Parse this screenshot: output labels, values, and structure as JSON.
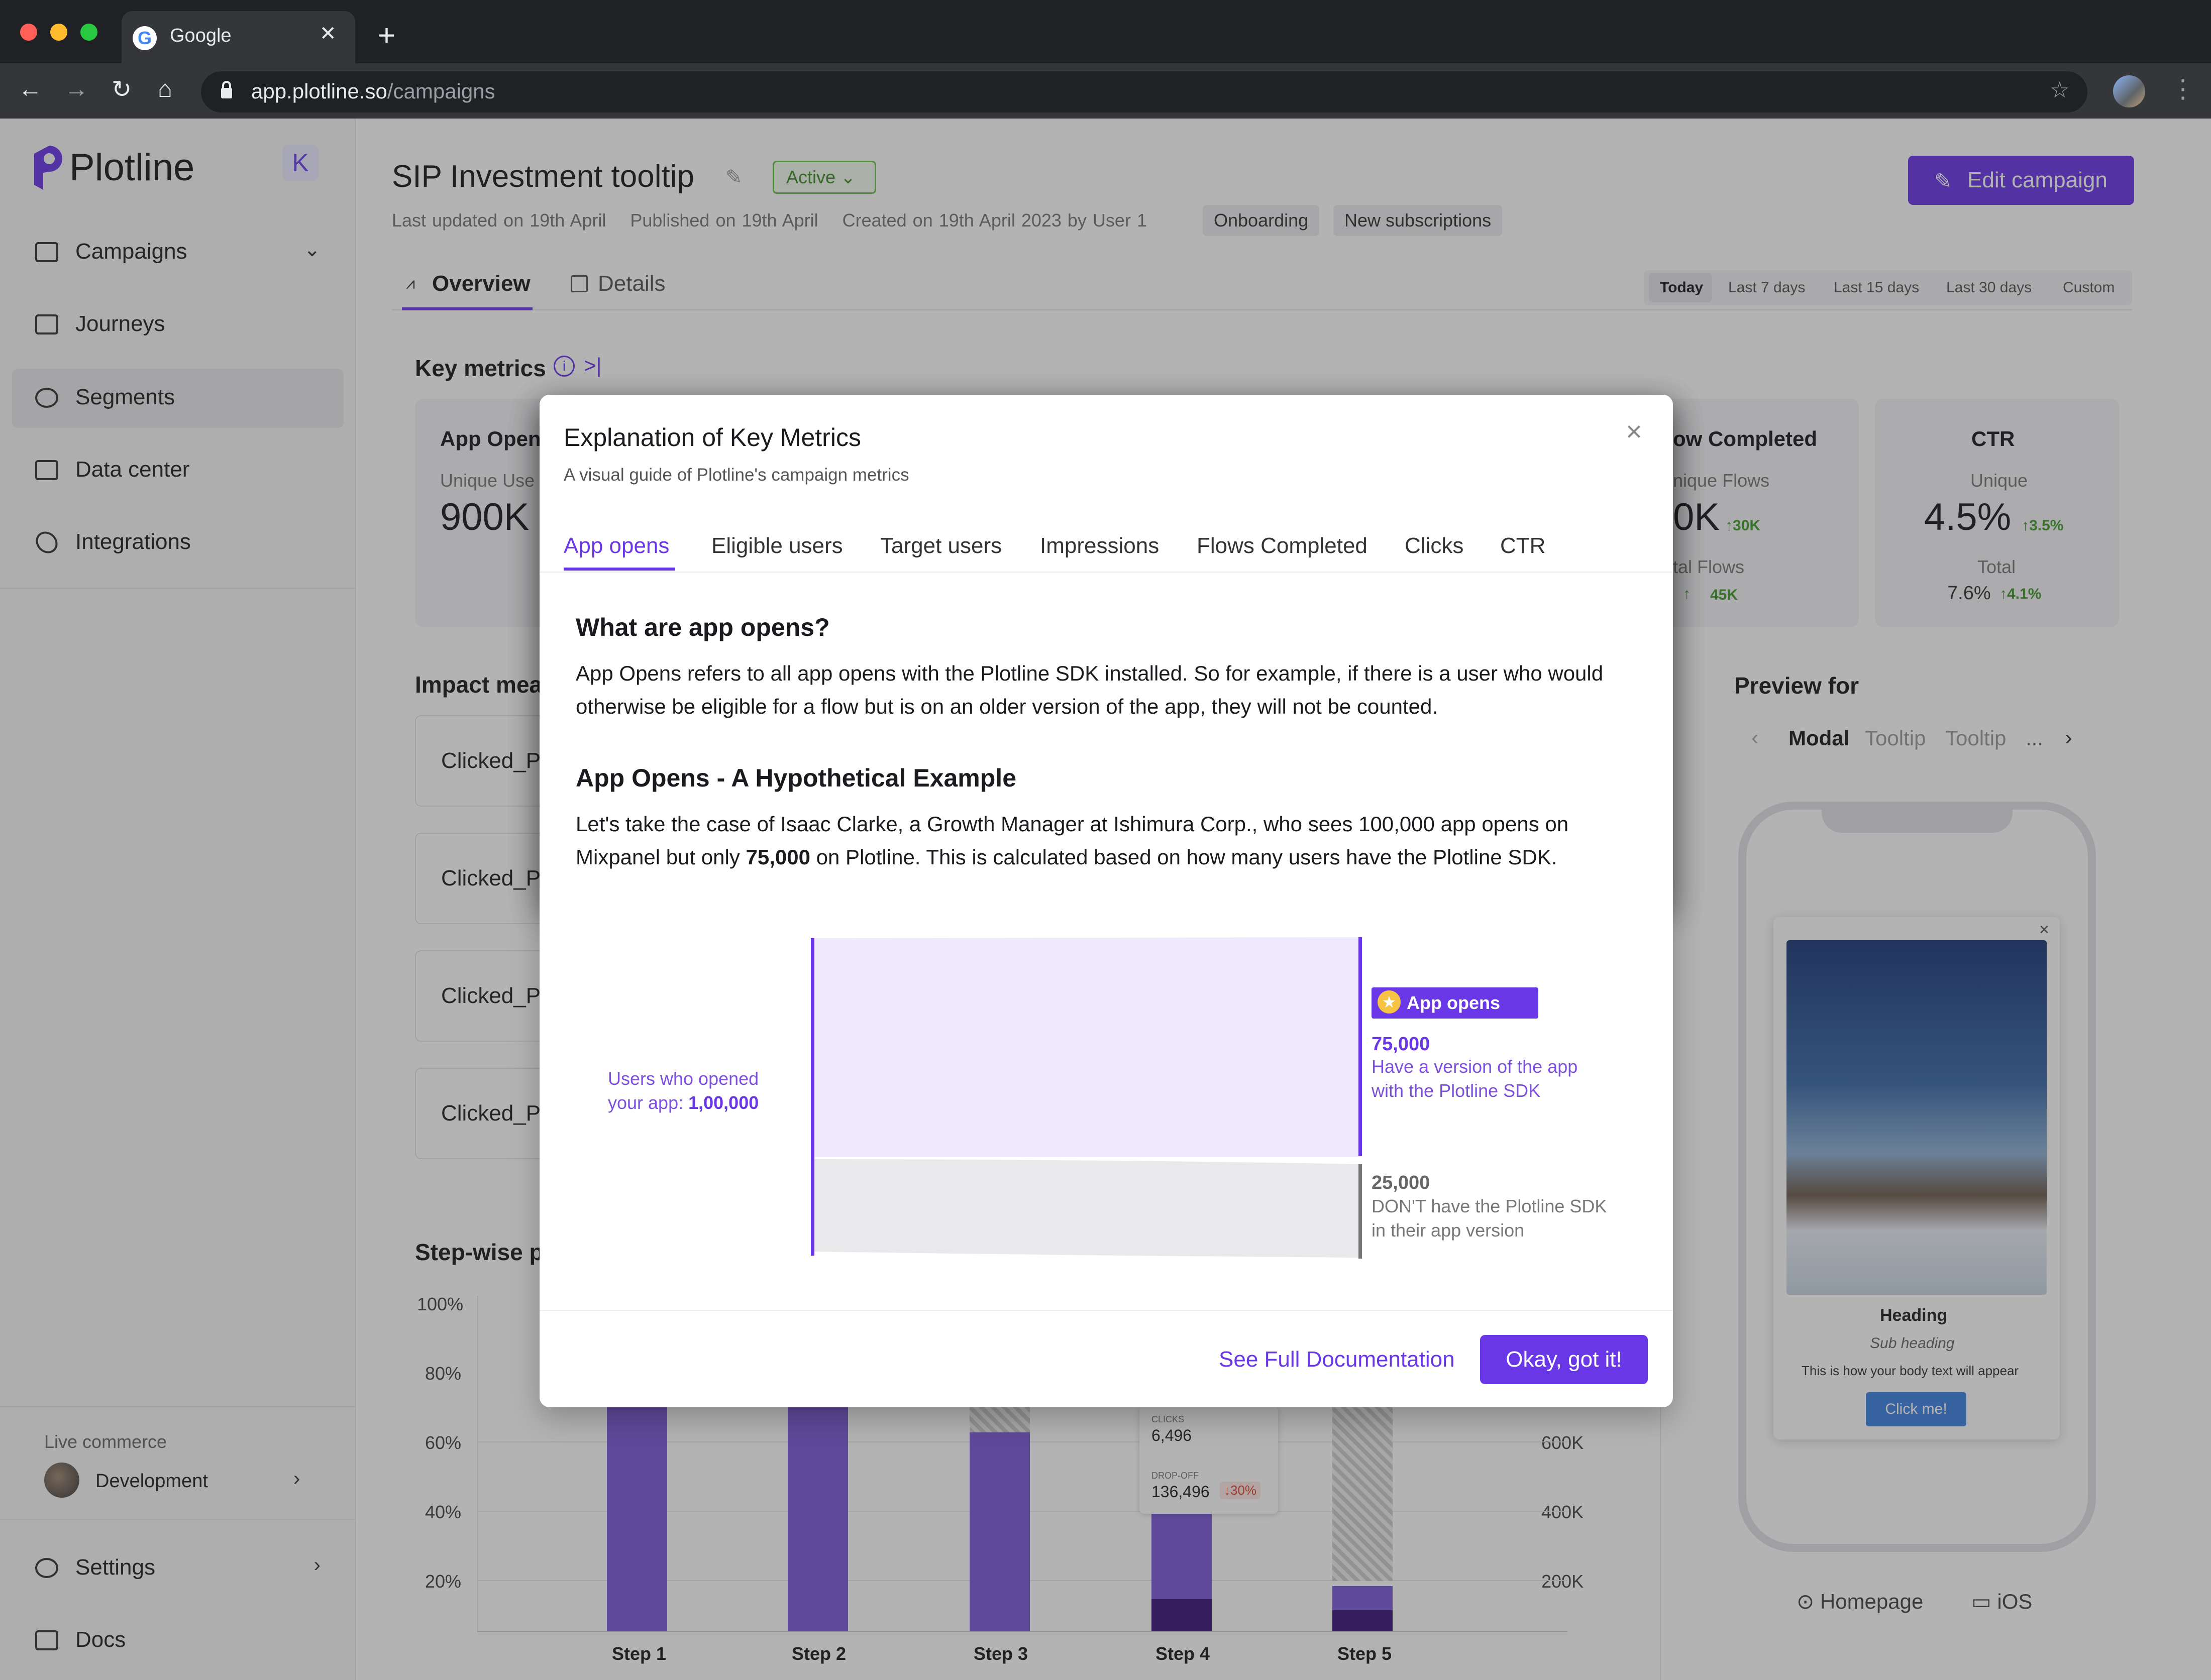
{
  "browser": {
    "tab_title": "Google",
    "favicon_letter": "G",
    "url_host": "app.plotline.so",
    "url_path": "/campaigns"
  },
  "sidebar": {
    "logo": "Plotline",
    "items": [
      {
        "label": "Campaigns"
      },
      {
        "label": "Journeys"
      },
      {
        "label": "Segments"
      },
      {
        "label": "Data center"
      },
      {
        "label": "Integrations"
      }
    ],
    "workspace_label": "Live commerce",
    "workspace_name": "Development",
    "settings": "Settings",
    "docs": "Docs"
  },
  "page": {
    "title": "SIP Investment tooltip",
    "status": "Active",
    "meta": "Last updated on 19th April    Published on 19th April    Created on 19th April 2023 by User 1",
    "tags": [
      "Onboarding",
      "New subscriptions"
    ],
    "edit_button": "Edit campaign",
    "tabs": [
      "Overview",
      "Details"
    ],
    "date_ranges": [
      "Today",
      "Last 7 days",
      "Last 15 days",
      "Last 30 days",
      "Custom"
    ],
    "key_metrics_title": "Key metrics",
    "metrics": {
      "app_opens": {
        "label": "App Open",
        "sub": "Unique Use",
        "value": "900K"
      },
      "flows": {
        "label": "ow Completed",
        "sub1": "nique Flows",
        "value": "0K",
        "delta1": "↑30K",
        "sub2": "tal Flows",
        "value2": "↑",
        "delta2": "45K"
      },
      "ctr": {
        "label": "CTR",
        "sub1": "Unique",
        "value": "4.5%",
        "delta1": "↑3.5%",
        "sub2": "Total",
        "value2": "7.6%",
        "delta2": "↑4.1%"
      }
    },
    "impact_title": "Impact mea",
    "impact_rows": [
      "Clicked_P",
      "Clicked_P",
      "Clicked_P",
      "Clicked_P"
    ],
    "stepwise_title": "Step-wise p",
    "y_ticks": [
      "100%",
      "80%",
      "60%",
      "40%",
      "20%"
    ],
    "y2_ticks": [
      "600K",
      "400K",
      "200K"
    ],
    "steps": [
      "Step 1",
      "Step 2",
      "Step 3",
      "Step 4",
      "Step 5"
    ],
    "step_tooltip": {
      "clicks_label": "CLICKS",
      "clicks": "6,496",
      "dropoff_label": "DROP-OFF",
      "dropoff": "136,496",
      "dropoff_pct": "↓30%"
    },
    "preview_title": "Preview for",
    "preview_tabs": [
      "Modal",
      "Tooltip",
      "Tooltip",
      "..."
    ],
    "preview_card": {
      "heading": "Heading",
      "subheading": "Sub heading",
      "body": "This is how your body text will appear",
      "cta": "Click me!"
    },
    "preview_location": "Homepage",
    "preview_os": "iOS"
  },
  "modal": {
    "title": "Explanation of Key Metrics",
    "subtitle": "A visual guide of Plotline's campaign metrics",
    "tabs": [
      "App opens",
      "Eligible users",
      "Target users",
      "Impressions",
      "Flows Completed",
      "Clicks",
      "CTR"
    ],
    "q_heading": "What are app opens?",
    "q_body": "App Opens refers to all app opens with the Plotline SDK installed. So for example, if there is a user who would otherwise be eligible for a flow but is on an older version of the app, they will not be counted.",
    "ex_heading": "App Opens - A Hypothetical Example",
    "ex_body_1": "Let's take the case of Isaac Clarke, a Growth Manager at Ishimura Corp., who sees 100,000 app opens on Mixpanel but only ",
    "ex_body_bold": "75,000",
    "ex_body_2": " on Plotline. This is calculated based on how many users have the Plotline SDK.",
    "sankey": {
      "left_label_1": "Users who opened",
      "left_label_2": "your app: ",
      "left_value": "1,00,000",
      "badge": "App opens",
      "opens_value": "75,000",
      "opens_desc": "Have a version of the app with the Plotline SDK",
      "drop_value": "25,000",
      "drop_desc": "DON'T have the Plotline SDK in their app version"
    },
    "docs_link": "See Full Documentation",
    "ok_button": "Okay, got it!"
  },
  "colors": {
    "accent": "#6a37e6",
    "active_green": "#3f8f2a"
  }
}
